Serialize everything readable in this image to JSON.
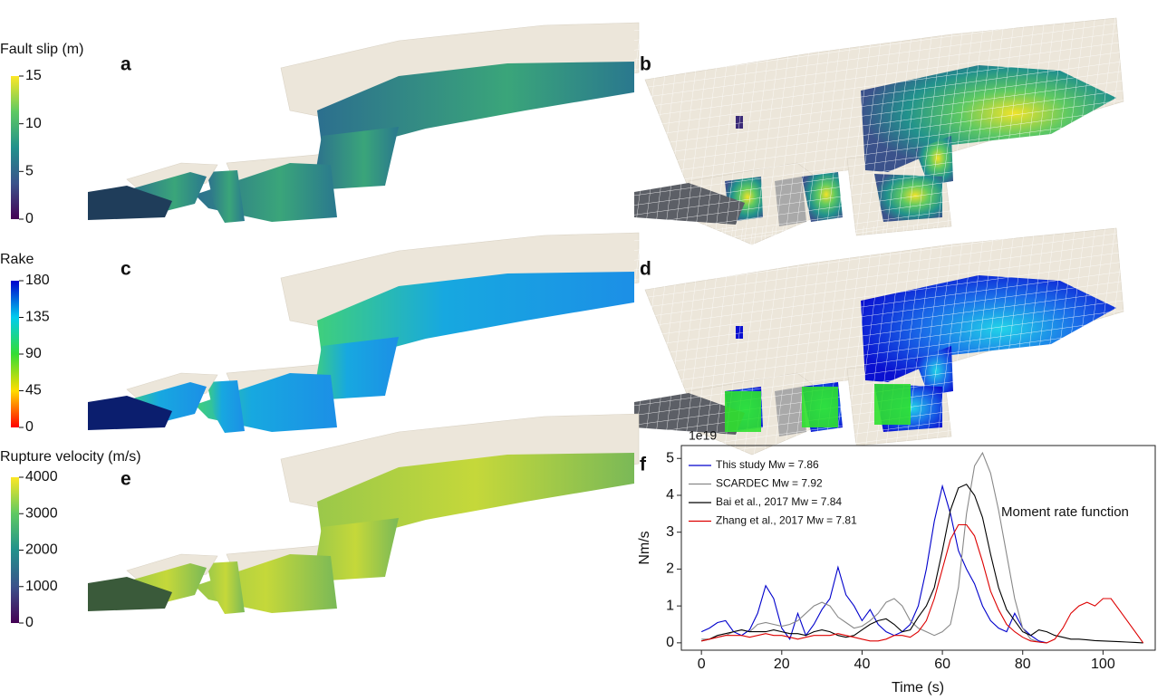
{
  "panels": [
    {
      "label": "a"
    },
    {
      "label": "b"
    },
    {
      "label": "c"
    },
    {
      "label": "d"
    },
    {
      "label": "e"
    }
  ],
  "colorbars": [
    {
      "title": "Fault slip (m)",
      "lim": [
        0,
        15
      ],
      "ticks": [
        0,
        5,
        10,
        15
      ]
    },
    {
      "title": "Rake",
      "lim": [
        0,
        180
      ],
      "ticks": [
        0,
        45,
        90,
        135,
        180
      ]
    },
    {
      "title": "Rupture velocity (m/s)",
      "lim": [
        0,
        4000
      ],
      "ticks": [
        0,
        1000,
        2000,
        3000,
        4000
      ]
    }
  ],
  "chart_data": {
    "type": "line",
    "label": "f",
    "annotation": "Moment rate function",
    "scale_label": "1e19",
    "xlabel": "Time (s)",
    "ylabel": "Nm/s",
    "xlim": [
      -5,
      113
    ],
    "ylim": [
      -0.2,
      5.35
    ],
    "xticks": [
      0,
      20,
      40,
      60,
      80,
      100
    ],
    "yticks": [
      0,
      1,
      2,
      3,
      4,
      5
    ],
    "legend": "upper left",
    "x": [
      0,
      2,
      4,
      6,
      8,
      10,
      12,
      14,
      16,
      18,
      20,
      22,
      24,
      26,
      28,
      30,
      32,
      34,
      36,
      38,
      40,
      42,
      44,
      46,
      48,
      50,
      52,
      54,
      56,
      58,
      60,
      62,
      64,
      66,
      68,
      70,
      72,
      74,
      76,
      78,
      80,
      82,
      84,
      86,
      88,
      90,
      92,
      94,
      96,
      98,
      100,
      102,
      104,
      106,
      108,
      110
    ],
    "series": [
      {
        "name": "This study Mw = 7.86",
        "color": "#0000cc",
        "values": [
          0.3,
          0.4,
          0.55,
          0.6,
          0.3,
          0.2,
          0.35,
          0.8,
          1.55,
          1.2,
          0.4,
          0.1,
          0.8,
          0.2,
          0.5,
          0.9,
          1.2,
          2.05,
          1.3,
          1.0,
          0.6,
          0.9,
          0.5,
          0.3,
          0.2,
          0.3,
          0.5,
          1.0,
          2.0,
          3.3,
          4.25,
          3.5,
          2.5,
          2.0,
          1.6,
          1.0,
          0.6,
          0.4,
          0.3,
          0.8,
          0.4,
          0.2,
          0.05,
          0,
          null,
          null,
          null,
          null,
          null,
          null,
          null,
          null,
          null,
          null,
          null,
          null
        ]
      },
      {
        "name": "SCARDEC Mw = 7.92",
        "color": "#888888",
        "values": [
          0.1,
          0.1,
          0.15,
          0.2,
          0.3,
          0.35,
          0.3,
          0.5,
          0.55,
          0.5,
          0.45,
          0.5,
          0.6,
          0.8,
          1.0,
          1.1,
          1.0,
          0.7,
          0.55,
          0.4,
          0.45,
          0.6,
          0.8,
          1.1,
          1.2,
          1.0,
          0.6,
          0.4,
          0.3,
          0.2,
          0.3,
          0.5,
          1.5,
          3.5,
          4.8,
          5.15,
          4.6,
          3.6,
          2.4,
          1.2,
          0.4,
          0.1,
          0.02,
          0,
          null,
          null,
          null,
          null,
          null,
          null,
          null,
          null,
          null,
          null,
          null,
          null
        ]
      },
      {
        "name": "Bai et al., 2017 Mw = 7.84",
        "color": "#000000",
        "values": [
          0.05,
          0.1,
          0.2,
          0.25,
          0.3,
          0.35,
          0.3,
          0.3,
          0.3,
          0.35,
          0.3,
          0.25,
          0.25,
          0.2,
          0.3,
          0.35,
          0.3,
          0.2,
          0.15,
          0.2,
          0.35,
          0.5,
          0.6,
          0.65,
          0.5,
          0.3,
          0.35,
          0.7,
          1.0,
          1.5,
          2.5,
          3.6,
          4.2,
          4.3,
          4.0,
          3.4,
          2.4,
          1.5,
          0.9,
          0.6,
          0.3,
          0.2,
          0.35,
          0.3,
          0.2,
          0.15,
          0.1,
          0.1,
          0.08,
          0.06,
          0.05,
          0.04,
          0.03,
          0.02,
          0.01,
          0
        ]
      },
      {
        "name": "Zhang et al., 2017 Mw = 7.81",
        "color": "#dd0000",
        "values": [
          0.05,
          0.1,
          0.15,
          0.2,
          0.2,
          0.2,
          0.15,
          0.2,
          0.25,
          0.2,
          0.2,
          0.15,
          0.1,
          0.15,
          0.2,
          0.2,
          0.2,
          0.25,
          0.2,
          0.15,
          0.1,
          0.05,
          0.05,
          0.1,
          0.2,
          0.2,
          0.15,
          0.3,
          0.6,
          1.2,
          2.0,
          2.8,
          3.2,
          3.2,
          2.9,
          2.2,
          1.4,
          0.9,
          0.5,
          0.3,
          0.15,
          0.05,
          0.02,
          0,
          0.1,
          0.4,
          0.8,
          1.0,
          1.1,
          1.0,
          1.2,
          1.2,
          0.9,
          0.6,
          0.3,
          0
        ]
      }
    ]
  }
}
